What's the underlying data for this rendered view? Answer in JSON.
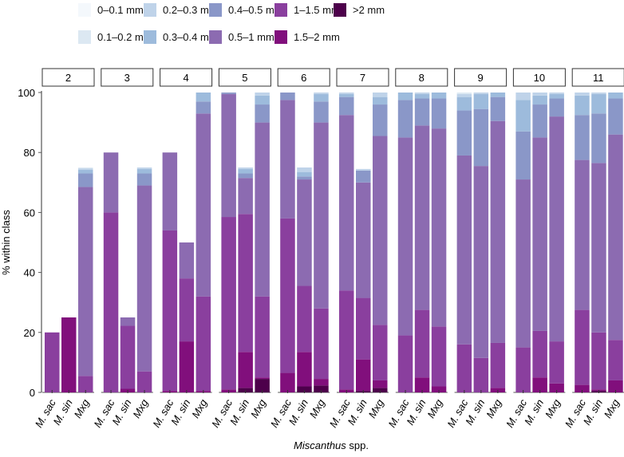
{
  "chart_data": {
    "type": "bar",
    "stacked": true,
    "facet_label_title": "class",
    "ylabel": "% within class",
    "xlabel_italic": "Miscanthus",
    "xlabel_rest": " spp.",
    "ylim": [
      0,
      100
    ],
    "yticks": [
      "0",
      "20",
      "40",
      "60",
      "80",
      "100"
    ],
    "ytick_values": [
      0,
      20,
      40,
      60,
      80,
      100
    ],
    "categories": [
      "M. sac",
      "M. sin",
      "Mxg"
    ],
    "legend_position": "top",
    "classes": [
      {
        "name": "0–0.1 mm",
        "color": "#f4f8fc"
      },
      {
        "name": "0.1–0.2 mm",
        "color": "#dce8f2"
      },
      {
        "name": "0.2–0.3 mm",
        "color": "#bfd3e9"
      },
      {
        "name": "0.3–0.4 mm",
        "color": "#9dbbdc"
      },
      {
        "name": "0.4–0.5 mm",
        "color": "#8a97c8"
      },
      {
        "name": "0.5–1 mm",
        "color": "#8c6bb1"
      },
      {
        "name": "1–1.5 mm",
        "color": "#8a3f9e"
      },
      {
        "name": "1.5–2 mm",
        "color": "#810f7c"
      },
      {
        "name": ">2 mm",
        "color": "#4d004b"
      }
    ],
    "panels": [
      {
        "label": "2",
        "bars": [
          [
            0,
            0,
            0,
            0,
            0,
            0,
            20,
            0,
            0
          ],
          [
            0,
            0,
            0,
            0,
            0,
            0,
            0,
            25,
            0
          ],
          [
            0,
            0.3,
            0.5,
            1.2,
            4.5,
            63,
            5.5,
            0,
            0
          ]
        ]
      },
      {
        "label": "3",
        "bars": [
          [
            0,
            0,
            0,
            0,
            0,
            20,
            60,
            0,
            0
          ],
          [
            0,
            0,
            0,
            0,
            0,
            2.8,
            21,
            1.2,
            0
          ],
          [
            0,
            0,
            0.5,
            1.5,
            4,
            62,
            7,
            0,
            0
          ]
        ]
      },
      {
        "label": "4",
        "bars": [
          [
            0,
            0,
            0,
            0,
            0,
            26,
            53.5,
            0.5,
            0
          ],
          [
            0,
            0,
            0,
            0,
            0,
            12,
            21,
            17,
            0
          ],
          [
            0,
            0,
            0,
            3,
            4,
            61,
            31.5,
            0.5,
            0
          ]
        ]
      },
      {
        "label": "5",
        "bars": [
          [
            0,
            0,
            0,
            0,
            0.5,
            41,
            57.5,
            1,
            0
          ],
          [
            0,
            0,
            0.5,
            1.5,
            1.5,
            12,
            46,
            12,
            1.5
          ],
          [
            0,
            0,
            1,
            3,
            6,
            58,
            27,
            0.5,
            4.5
          ]
        ]
      },
      {
        "label": "6",
        "bars": [
          [
            0,
            0,
            0,
            0,
            2.5,
            39.5,
            51.5,
            6.5,
            0
          ],
          [
            0,
            0,
            1.5,
            1.5,
            1,
            35.5,
            22,
            11.5,
            2
          ],
          [
            0,
            0,
            0.5,
            2.5,
            7,
            62,
            23.5,
            2.2,
            2.3
          ]
        ]
      },
      {
        "label": "7",
        "bars": [
          [
            0,
            0,
            0.5,
            1,
            6,
            58.5,
            33,
            1,
            0
          ],
          [
            0,
            0,
            0.5,
            0,
            4,
            38.5,
            20.5,
            10.5,
            0.5
          ],
          [
            0,
            0,
            1.5,
            2.5,
            10.5,
            63,
            18.5,
            2.5,
            1.5
          ]
        ]
      },
      {
        "label": "8",
        "bars": [
          [
            0,
            0,
            0,
            2.5,
            12.5,
            66,
            19,
            0,
            0
          ],
          [
            0,
            0,
            0.5,
            1.5,
            9,
            61.5,
            22.5,
            5,
            0
          ],
          [
            0,
            0,
            0,
            2,
            10,
            66,
            20,
            2,
            0
          ]
        ]
      },
      {
        "label": "9",
        "bars": [
          [
            0,
            0.5,
            1,
            4.5,
            15,
            63,
            16,
            0,
            0
          ],
          [
            0,
            0,
            0.5,
            5,
            19,
            64,
            11.5,
            0,
            0
          ],
          [
            0,
            0,
            0,
            1.5,
            8,
            74,
            15,
            1.5,
            0
          ]
        ]
      },
      {
        "label": "10",
        "bars": [
          [
            0,
            0,
            2.5,
            10.5,
            16,
            56,
            15,
            0,
            0
          ],
          [
            0,
            0,
            1,
            3,
            11,
            64.5,
            15.5,
            5,
            0
          ],
          [
            0,
            0,
            0.5,
            1.5,
            6,
            75,
            14,
            3,
            0
          ]
        ]
      },
      {
        "label": "11",
        "bars": [
          [
            0,
            0,
            1,
            6.5,
            15,
            50,
            25,
            2.5,
            0
          ],
          [
            0,
            0,
            0.5,
            6.5,
            16.5,
            56.5,
            19,
            0.5,
            0.5
          ],
          [
            0,
            0,
            0,
            2,
            12,
            68.5,
            13.5,
            4,
            0
          ]
        ]
      }
    ]
  }
}
